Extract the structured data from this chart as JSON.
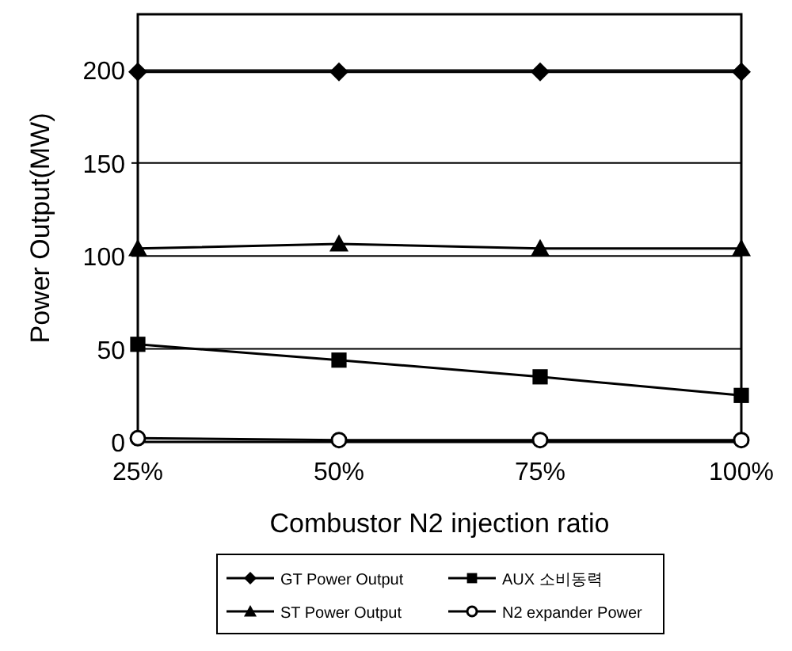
{
  "chart_data": {
    "type": "line",
    "xlabel": "Combustor N2 injection ratio",
    "ylabel": "Power Output(MW)",
    "categories": [
      "25%",
      "50%",
      "75%",
      "100%"
    ],
    "ylim": [
      0,
      230
    ],
    "yticks": [
      0,
      50,
      100,
      150,
      200
    ],
    "grid": "y",
    "legend": "bottom",
    "line_style": "solid",
    "series": [
      {
        "name": "GT Power Output",
        "color": "#000000",
        "marker": "diamond",
        "values": [
          199,
          199,
          199,
          199
        ]
      },
      {
        "name": "AUX 소비동력",
        "color": "#000000",
        "marker": "square",
        "values": [
          52.5,
          44,
          35,
          25
        ]
      },
      {
        "name": "ST Power Output",
        "color": "#000000",
        "marker": "triangle",
        "values": [
          104,
          106.5,
          104,
          104
        ]
      },
      {
        "name": "N2 expander Power",
        "color": "#000000",
        "marker": "circle",
        "values": [
          2,
          1,
          1,
          1
        ]
      }
    ]
  }
}
